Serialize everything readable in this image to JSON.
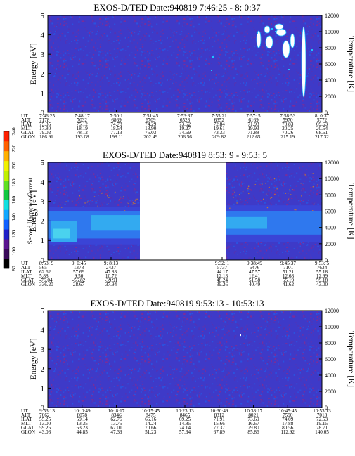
{
  "axes": {
    "y_left_label": "Energy [eV]",
    "y_right_label": "Temperature [K]",
    "y_left_ticks": [
      "0",
      "1",
      "2",
      "3",
      "4",
      "5"
    ],
    "y_right_ticks": [
      "0",
      "2000",
      "4000",
      "6000",
      "8000",
      "10000",
      "12000"
    ]
  },
  "colorbar": {
    "label": "Second Harmonic Current",
    "ticks": [
      "80",
      "100",
      "120",
      "140",
      "160",
      "180",
      "200",
      "220",
      "240"
    ],
    "colors": [
      "#000000",
      "#3a0a5a",
      "#5a1590",
      "#2020c8",
      "#1060ff",
      "#10a8ff",
      "#10e0e0",
      "#10c840",
      "#60e020",
      "#c0f000",
      "#f0f000",
      "#ffb000",
      "#ff6000",
      "#ff2000"
    ]
  },
  "colors": {
    "background": "#3e3ac8",
    "dot_a": "#7a2c9a",
    "dot_b": "#2a52e0",
    "dot_c": "#5232b4",
    "band_deep": "#3a44d6",
    "band_mid": "#2f78ee",
    "band_light": "#33aaf0",
    "band_cyan": "#4ad2ee",
    "sprinkle": "#c07838"
  },
  "chart_data": [
    {
      "type": "heatmap",
      "title": "EXOS-D/TED   Date:940819  7:46:25 - 8: 0:37",
      "yrange": [
        0,
        5
      ],
      "temperature_range": [
        0,
        12000
      ],
      "data_gap": null,
      "features": "uniform low background; white saturated blobs 3.5-5 eV in the last fifth of the interval",
      "ephemeris": {
        "labels": [
          "UT",
          "ALT",
          "ILAT",
          "MLT",
          "GLAT",
          "GLON"
        ],
        "columns": [
          [
            "7:46:25",
            "7178",
            "75.35",
            "17.80",
            "79.02",
            "186.91"
          ],
          [
            "7:48:17",
            "7032",
            "75.12",
            "18.19",
            "78.12",
            "193.08"
          ],
          [
            "7:50:1",
            "6869",
            "74.78",
            "18.54",
            "77.13",
            "198.11"
          ],
          [
            "7:51:45",
            "6709",
            "74.29",
            "18.90",
            "76.03",
            "202.49"
          ],
          [
            "7:53:37",
            "6528",
            "73.62",
            "19.27",
            "74.69",
            "206.56"
          ],
          [
            "7:55:21",
            "6352",
            "72.84",
            "19.61",
            "73.33",
            "209.82"
          ],
          [
            "7:57: 5",
            "6169",
            "71.93",
            "19.93",
            "71.88",
            "212.65"
          ],
          [
            "7:58:53",
            "5970",
            "70.83",
            "20.25",
            "70.26",
            "215.19"
          ],
          [
            "8: 0:37",
            "5772",
            "69.63",
            "20.54",
            "68.61",
            "217.32"
          ]
        ]
      }
    },
    {
      "type": "heatmap",
      "title": "EXOS-D/TED   Date:940819  8:53: 9 - 9:53: 5",
      "yrange": [
        0,
        5
      ],
      "temperature_range": [
        0,
        12000
      ],
      "data_gap": "between 9:8:13 and 9:32:1",
      "features": "enhanced band from 0.8 to 2.7 eV in both data segments; scattered points to 4.5 eV",
      "ephemeris": {
        "labels": [
          "UT",
          "ALT",
          "ILAT",
          "MLT",
          "GLAT",
          "GLON"
        ],
        "columns": [
          [
            "8:53: 9",
            "565",
            "62.62",
            "5.88",
            "-76.04",
            "336.20"
          ],
          [
            "9: 0:45",
            "1378",
            "57.69",
            "9.50",
            "-56.82",
            "28.67"
          ],
          [
            "9: 8:13",
            "2437",
            "47.83",
            "10.72",
            "-39.91",
            "37.94"
          ],
          [
            "9:32: 1",
            "5737",
            "44.17",
            "12.13",
            "48.24",
            "39.26"
          ],
          [
            "9:38:49",
            "6476",
            "47.57",
            "12.41",
            "51.58",
            "40.49"
          ],
          [
            "9:45:37",
            "7101",
            "51.21",
            "12.68",
            "55.19",
            "41.62"
          ],
          [
            "9:53: 5",
            "7634",
            "55.18",
            "12.99",
            "59.18",
            "43.00"
          ]
        ]
      }
    },
    {
      "type": "heatmap",
      "title": "EXOS-D/TED   Date:940819  9:53:13 - 10:53:13",
      "yrange": [
        0,
        5
      ],
      "temperature_range": [
        0,
        12000
      ],
      "data_gap": null,
      "features": "uniform low background; isolated point near 3.8 eV",
      "ephemeris": {
        "labels": [
          "UT",
          "ALT",
          "ILAT",
          "MLT",
          "GLAT",
          "GLON"
        ],
        "columns": [
          [
            "9:53:13",
            "7662",
            "55.25",
            "13.00",
            "59.25",
            "43.03"
          ],
          [
            "10: 0:49",
            "8078",
            "59.14",
            "13.35",
            "63.23",
            "44.85"
          ],
          [
            "10: 8:17",
            "8346",
            "62.76",
            "13.75",
            "67.01",
            "47.39"
          ],
          [
            "10:15:45",
            "8475",
            "66.16",
            "14.24",
            "70.66",
            "51.23"
          ],
          [
            "10:23:13",
            "8465",
            "69.25",
            "14.85",
            "74.14",
            "57.34"
          ],
          [
            "10:30:49",
            "8312",
            "71.91",
            "15.66",
            "77.37",
            "67.89"
          ],
          [
            "10:38:17",
            "8021",
            "73.69",
            "16.67",
            "79.80",
            "85.86"
          ],
          [
            "10:45:45",
            "7590",
            "74.09",
            "17.88",
            "80.56",
            "112.92"
          ],
          [
            "10:53:13",
            "7018",
            "72.53",
            "19.15",
            "78.71",
            "140.05"
          ]
        ]
      }
    }
  ]
}
